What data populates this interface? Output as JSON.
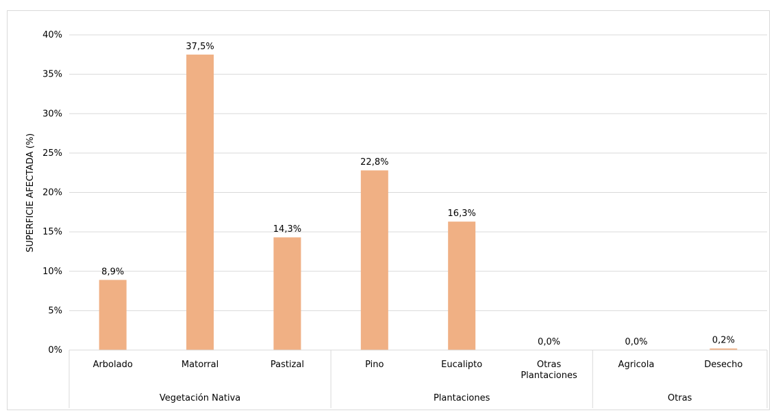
{
  "chart_data": {
    "type": "bar",
    "ylabel": "SUPERFICIE AFECTADA (%)",
    "ylim": [
      0,
      40
    ],
    "yticks": [
      0,
      5,
      10,
      15,
      20,
      25,
      30,
      35,
      40
    ],
    "ytick_labels": [
      "0%",
      "5%",
      "10%",
      "15%",
      "20%",
      "25%",
      "30%",
      "35%",
      "40%"
    ],
    "grid": true,
    "bar_color": "#f0b084",
    "categories": [
      {
        "label": [
          "Arbolado"
        ],
        "group": 0,
        "value": 8.9,
        "value_label": "8,9%"
      },
      {
        "label": [
          "Matorral"
        ],
        "group": 0,
        "value": 37.5,
        "value_label": "37,5%"
      },
      {
        "label": [
          "Pastizal"
        ],
        "group": 0,
        "value": 14.3,
        "value_label": "14,3%"
      },
      {
        "label": [
          "Pino"
        ],
        "group": 1,
        "value": 22.8,
        "value_label": "22,8%"
      },
      {
        "label": [
          "Eucalipto"
        ],
        "group": 1,
        "value": 16.3,
        "value_label": "16,3%"
      },
      {
        "label": [
          "Otras",
          "Plantaciones"
        ],
        "group": 1,
        "value": 0.0,
        "value_label": "0,0%"
      },
      {
        "label": [
          "Agricola"
        ],
        "group": 2,
        "value": 0.0,
        "value_label": "0,0%"
      },
      {
        "label": [
          "Desecho"
        ],
        "group": 2,
        "value": 0.2,
        "value_label": "0,2%"
      }
    ],
    "groups": [
      "Vegetación Nativa",
      "Plantaciones",
      "Otras"
    ]
  }
}
